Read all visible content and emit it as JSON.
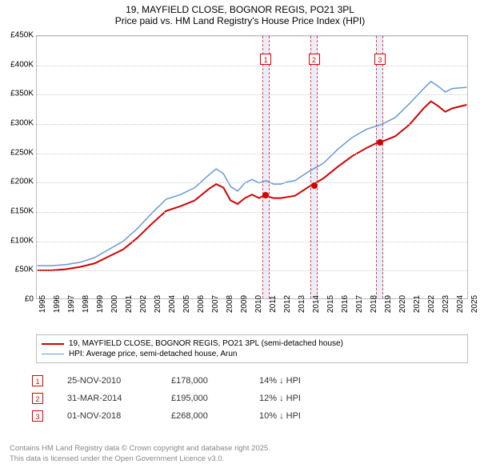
{
  "title": "19, MAYFIELD CLOSE, BOGNOR REGIS, PO21 3PL",
  "subtitle": "Price paid vs. HM Land Registry's House Price Index (HPI)",
  "chart": {
    "type": "line",
    "background_color": "#ffffff",
    "grid_color": "#cccccc",
    "border_color": "#bbbbbb",
    "tick_fontsize": 10,
    "ymin": 0,
    "ymax": 450000,
    "ytick_step": 50000,
    "yticks": [
      "£0",
      "£50K",
      "£100K",
      "£150K",
      "£200K",
      "£250K",
      "£300K",
      "£350K",
      "£400K",
      "£450K"
    ],
    "xmin": 1995,
    "xmax": 2025,
    "xticks": [
      "1995",
      "1996",
      "1997",
      "1998",
      "1999",
      "2000",
      "2001",
      "2002",
      "2003",
      "2004",
      "2005",
      "2006",
      "2007",
      "2008",
      "2009",
      "2010",
      "2011",
      "2012",
      "2013",
      "2014",
      "2015",
      "2016",
      "2017",
      "2018",
      "2019",
      "2020",
      "2021",
      "2022",
      "2023",
      "2024",
      "2025"
    ],
    "series": [
      {
        "name": "19, MAYFIELD CLOSE, BOGNOR REGIS, PO21 3PL (semi-detached house)",
        "color": "#d00000",
        "width": 2,
        "data": [
          [
            1995,
            48000
          ],
          [
            1996,
            48000
          ],
          [
            1997,
            50000
          ],
          [
            1998,
            54000
          ],
          [
            1999,
            60000
          ],
          [
            2000,
            72000
          ],
          [
            2001,
            84000
          ],
          [
            2002,
            104000
          ],
          [
            2003,
            128000
          ],
          [
            2004,
            150000
          ],
          [
            2005,
            158000
          ],
          [
            2006,
            168000
          ],
          [
            2007,
            188000
          ],
          [
            2007.5,
            196000
          ],
          [
            2008,
            190000
          ],
          [
            2008.5,
            168000
          ],
          [
            2009,
            162000
          ],
          [
            2009.5,
            172000
          ],
          [
            2010,
            178000
          ],
          [
            2010.5,
            172000
          ],
          [
            2010.9,
            178000
          ],
          [
            2011,
            176000
          ],
          [
            2011.5,
            172000
          ],
          [
            2012,
            172000
          ],
          [
            2012.5,
            174000
          ],
          [
            2013,
            176000
          ],
          [
            2013.5,
            184000
          ],
          [
            2014,
            192000
          ],
          [
            2014.25,
            195000
          ],
          [
            2015,
            206000
          ],
          [
            2016,
            226000
          ],
          [
            2017,
            244000
          ],
          [
            2018,
            258000
          ],
          [
            2018.83,
            268000
          ],
          [
            2019,
            268000
          ],
          [
            2020,
            278000
          ],
          [
            2021,
            298000
          ],
          [
            2022,
            326000
          ],
          [
            2022.5,
            338000
          ],
          [
            2023,
            330000
          ],
          [
            2023.5,
            320000
          ],
          [
            2024,
            326000
          ],
          [
            2025,
            332000
          ]
        ]
      },
      {
        "name": "HPI: Average price, semi-detached house, Arun",
        "color": "#6599d8",
        "width": 1.5,
        "data": [
          [
            1995,
            56000
          ],
          [
            1996,
            56000
          ],
          [
            1997,
            58000
          ],
          [
            1998,
            62000
          ],
          [
            1999,
            70000
          ],
          [
            2000,
            84000
          ],
          [
            2001,
            98000
          ],
          [
            2002,
            120000
          ],
          [
            2003,
            146000
          ],
          [
            2004,
            170000
          ],
          [
            2005,
            178000
          ],
          [
            2006,
            190000
          ],
          [
            2007,
            212000
          ],
          [
            2007.5,
            222000
          ],
          [
            2008,
            214000
          ],
          [
            2008.5,
            192000
          ],
          [
            2009,
            184000
          ],
          [
            2009.5,
            198000
          ],
          [
            2010,
            204000
          ],
          [
            2010.5,
            198000
          ],
          [
            2011,
            202000
          ],
          [
            2011.5,
            196000
          ],
          [
            2012,
            196000
          ],
          [
            2012.5,
            200000
          ],
          [
            2013,
            202000
          ],
          [
            2013.5,
            210000
          ],
          [
            2014,
            218000
          ],
          [
            2015,
            232000
          ],
          [
            2016,
            256000
          ],
          [
            2017,
            276000
          ],
          [
            2018,
            290000
          ],
          [
            2019,
            298000
          ],
          [
            2020,
            310000
          ],
          [
            2021,
            334000
          ],
          [
            2022,
            360000
          ],
          [
            2022.5,
            372000
          ],
          [
            2023,
            364000
          ],
          [
            2023.5,
            354000
          ],
          [
            2024,
            360000
          ],
          [
            2025,
            362000
          ]
        ]
      }
    ],
    "sale_markers": [
      {
        "n": "1",
        "year": 2010.9,
        "price": 178000
      },
      {
        "n": "2",
        "year": 2014.25,
        "price": 195000
      },
      {
        "n": "3",
        "year": 2018.83,
        "price": 268000
      }
    ],
    "marker_color": "#d00000",
    "band_fill": "rgba(100,150,230,0.15)",
    "band_border": "#dd4444"
  },
  "legend": {
    "entries": [
      {
        "label": "19, MAYFIELD CLOSE, BOGNOR REGIS, PO21 3PL (semi-detached house)",
        "color": "#d00000",
        "width": 2
      },
      {
        "label": "HPI: Average price, semi-detached house, Arun",
        "color": "#6599d8",
        "width": 1.5
      }
    ]
  },
  "sales": [
    {
      "n": "1",
      "date": "25-NOV-2010",
      "price": "£178,000",
      "diff": "14% ↓ HPI"
    },
    {
      "n": "2",
      "date": "31-MAR-2014",
      "price": "£195,000",
      "diff": "12% ↓ HPI"
    },
    {
      "n": "3",
      "date": "01-NOV-2018",
      "price": "£268,000",
      "diff": "10% ↓ HPI"
    }
  ],
  "footer": {
    "line1": "Contains HM Land Registry data © Crown copyright and database right 2025.",
    "line2": "This data is licensed under the Open Government Licence v3.0."
  }
}
